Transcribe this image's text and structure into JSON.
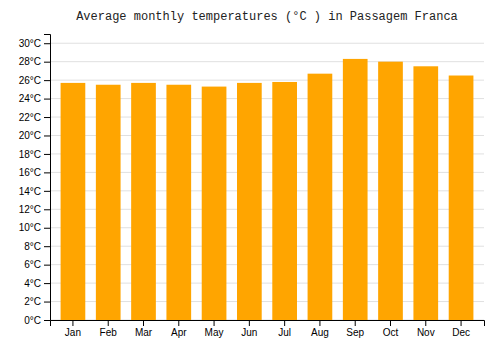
{
  "chart_data": {
    "type": "bar",
    "title": "Average monthly temperatures (°C ) in Passagem Franca",
    "categories": [
      "Jan",
      "Feb",
      "Mar",
      "Apr",
      "May",
      "Jun",
      "Jul",
      "Aug",
      "Sep",
      "Oct",
      "Nov",
      "Dec"
    ],
    "values": [
      25.7,
      25.5,
      25.7,
      25.5,
      25.3,
      25.7,
      25.8,
      26.7,
      28.3,
      28.0,
      27.5,
      26.5
    ],
    "color": "#FFA500",
    "ylim": [
      0,
      31
    ],
    "yticks": [
      {
        "value": 0,
        "label": "0°C"
      },
      {
        "value": 2,
        "label": "2°C"
      },
      {
        "value": 4,
        "label": "4°C"
      },
      {
        "value": 6,
        "label": "6°C"
      },
      {
        "value": 8,
        "label": "8°C"
      },
      {
        "value": 10,
        "label": "10°C"
      },
      {
        "value": 12,
        "label": "12°C"
      },
      {
        "value": 14,
        "label": "14°C"
      },
      {
        "value": 16,
        "label": "16°C"
      },
      {
        "value": 18,
        "label": "18°C"
      },
      {
        "value": 20,
        "label": "20°C"
      },
      {
        "value": 22,
        "label": "22°C"
      },
      {
        "value": 24,
        "label": "24°C"
      },
      {
        "value": 26,
        "label": "26°C"
      },
      {
        "value": 28,
        "label": "28°C"
      },
      {
        "value": 30,
        "label": "30°C"
      }
    ],
    "grid": true
  }
}
